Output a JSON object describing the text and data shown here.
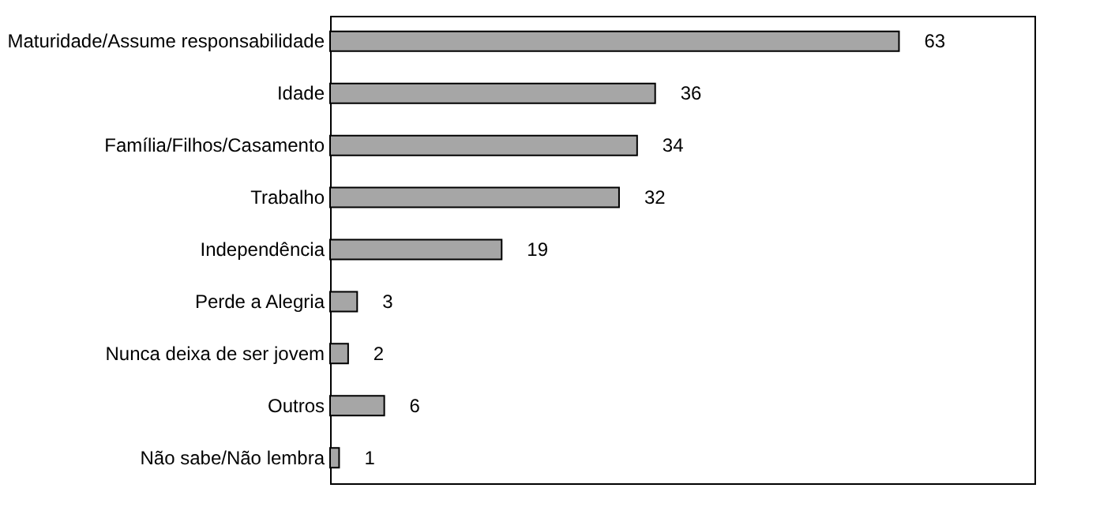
{
  "chart_data": {
    "type": "bar",
    "orientation": "horizontal",
    "categories": [
      "Maturidade/Assume responsabilidade",
      "Idade",
      "Família/Filhos/Casamento",
      "Trabalho",
      "Independência",
      "Perde a Alegria",
      "Nunca deixa de ser jovem",
      "Outros",
      "Não sabe/Não lembra"
    ],
    "values": [
      63,
      36,
      34,
      32,
      19,
      3,
      2,
      6,
      1
    ],
    "color": "#a6a6a6",
    "xlim": [
      0,
      78
    ],
    "data_labels": true,
    "grid": false,
    "tick_labels": "y"
  }
}
